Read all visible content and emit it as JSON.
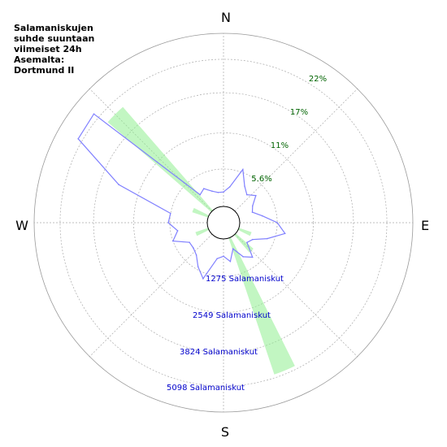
{
  "title_lines": [
    "Salamaniskujen",
    "suhde suuntaan",
    "viimeiset 24h",
    "Asemalta:",
    "Dortmund II"
  ],
  "chart_data": {
    "type": "polar",
    "compass": {
      "north": "N",
      "east": "E",
      "south": "S",
      "west": "W"
    },
    "percent_rings": [
      {
        "value": 5.6,
        "label": "5.6%"
      },
      {
        "value": 11,
        "label": "11%"
      },
      {
        "value": 17,
        "label": "17%"
      },
      {
        "value": 22,
        "label": "22%"
      }
    ],
    "count_rings": [
      {
        "value": 1275,
        "label": "1275 Salamaniskut"
      },
      {
        "value": 2549,
        "label": "2549 Salamaniskut"
      },
      {
        "value": 3824,
        "label": "3824 Salamaniskut"
      },
      {
        "value": 5098,
        "label": "5098 Salamaniskut"
      }
    ],
    "percent_bars": [
      {
        "direction_deg": 157.5,
        "value": 21.5
      },
      {
        "direction_deg": 315,
        "value": 20.5
      },
      {
        "direction_deg": 135,
        "value": 3.5
      },
      {
        "direction_deg": 247.5,
        "value": 2.0
      },
      {
        "direction_deg": 292.5,
        "value": 2.5
      },
      {
        "direction_deg": 112.5,
        "value": 2.0
      }
    ],
    "count_line": {
      "direction_deg": [
        0,
        10,
        20,
        30,
        40,
        50,
        60,
        70,
        80,
        90,
        100,
        110,
        120,
        130,
        140,
        150,
        160,
        170,
        180,
        190,
        200,
        210,
        220,
        230,
        240,
        250,
        260,
        270,
        280,
        290,
        300,
        310,
        320,
        330,
        340,
        350
      ],
      "values": [
        500,
        700,
        1400,
        900,
        700,
        900,
        600,
        500,
        800,
        1300,
        1600,
        1050,
        600,
        500,
        1000,
        800,
        400,
        800,
        600,
        700,
        1500,
        1200,
        900,
        800,
        800,
        1300,
        1050,
        1350,
        1300,
        3300,
        5250,
        5300,
        700,
        800,
        600,
        500
      ]
    }
  },
  "colors": {
    "percent_bar_fill": "#90ee90",
    "count_line_stroke": "#8080ff",
    "percent_label": "#006400",
    "count_label": "#0000cc"
  }
}
